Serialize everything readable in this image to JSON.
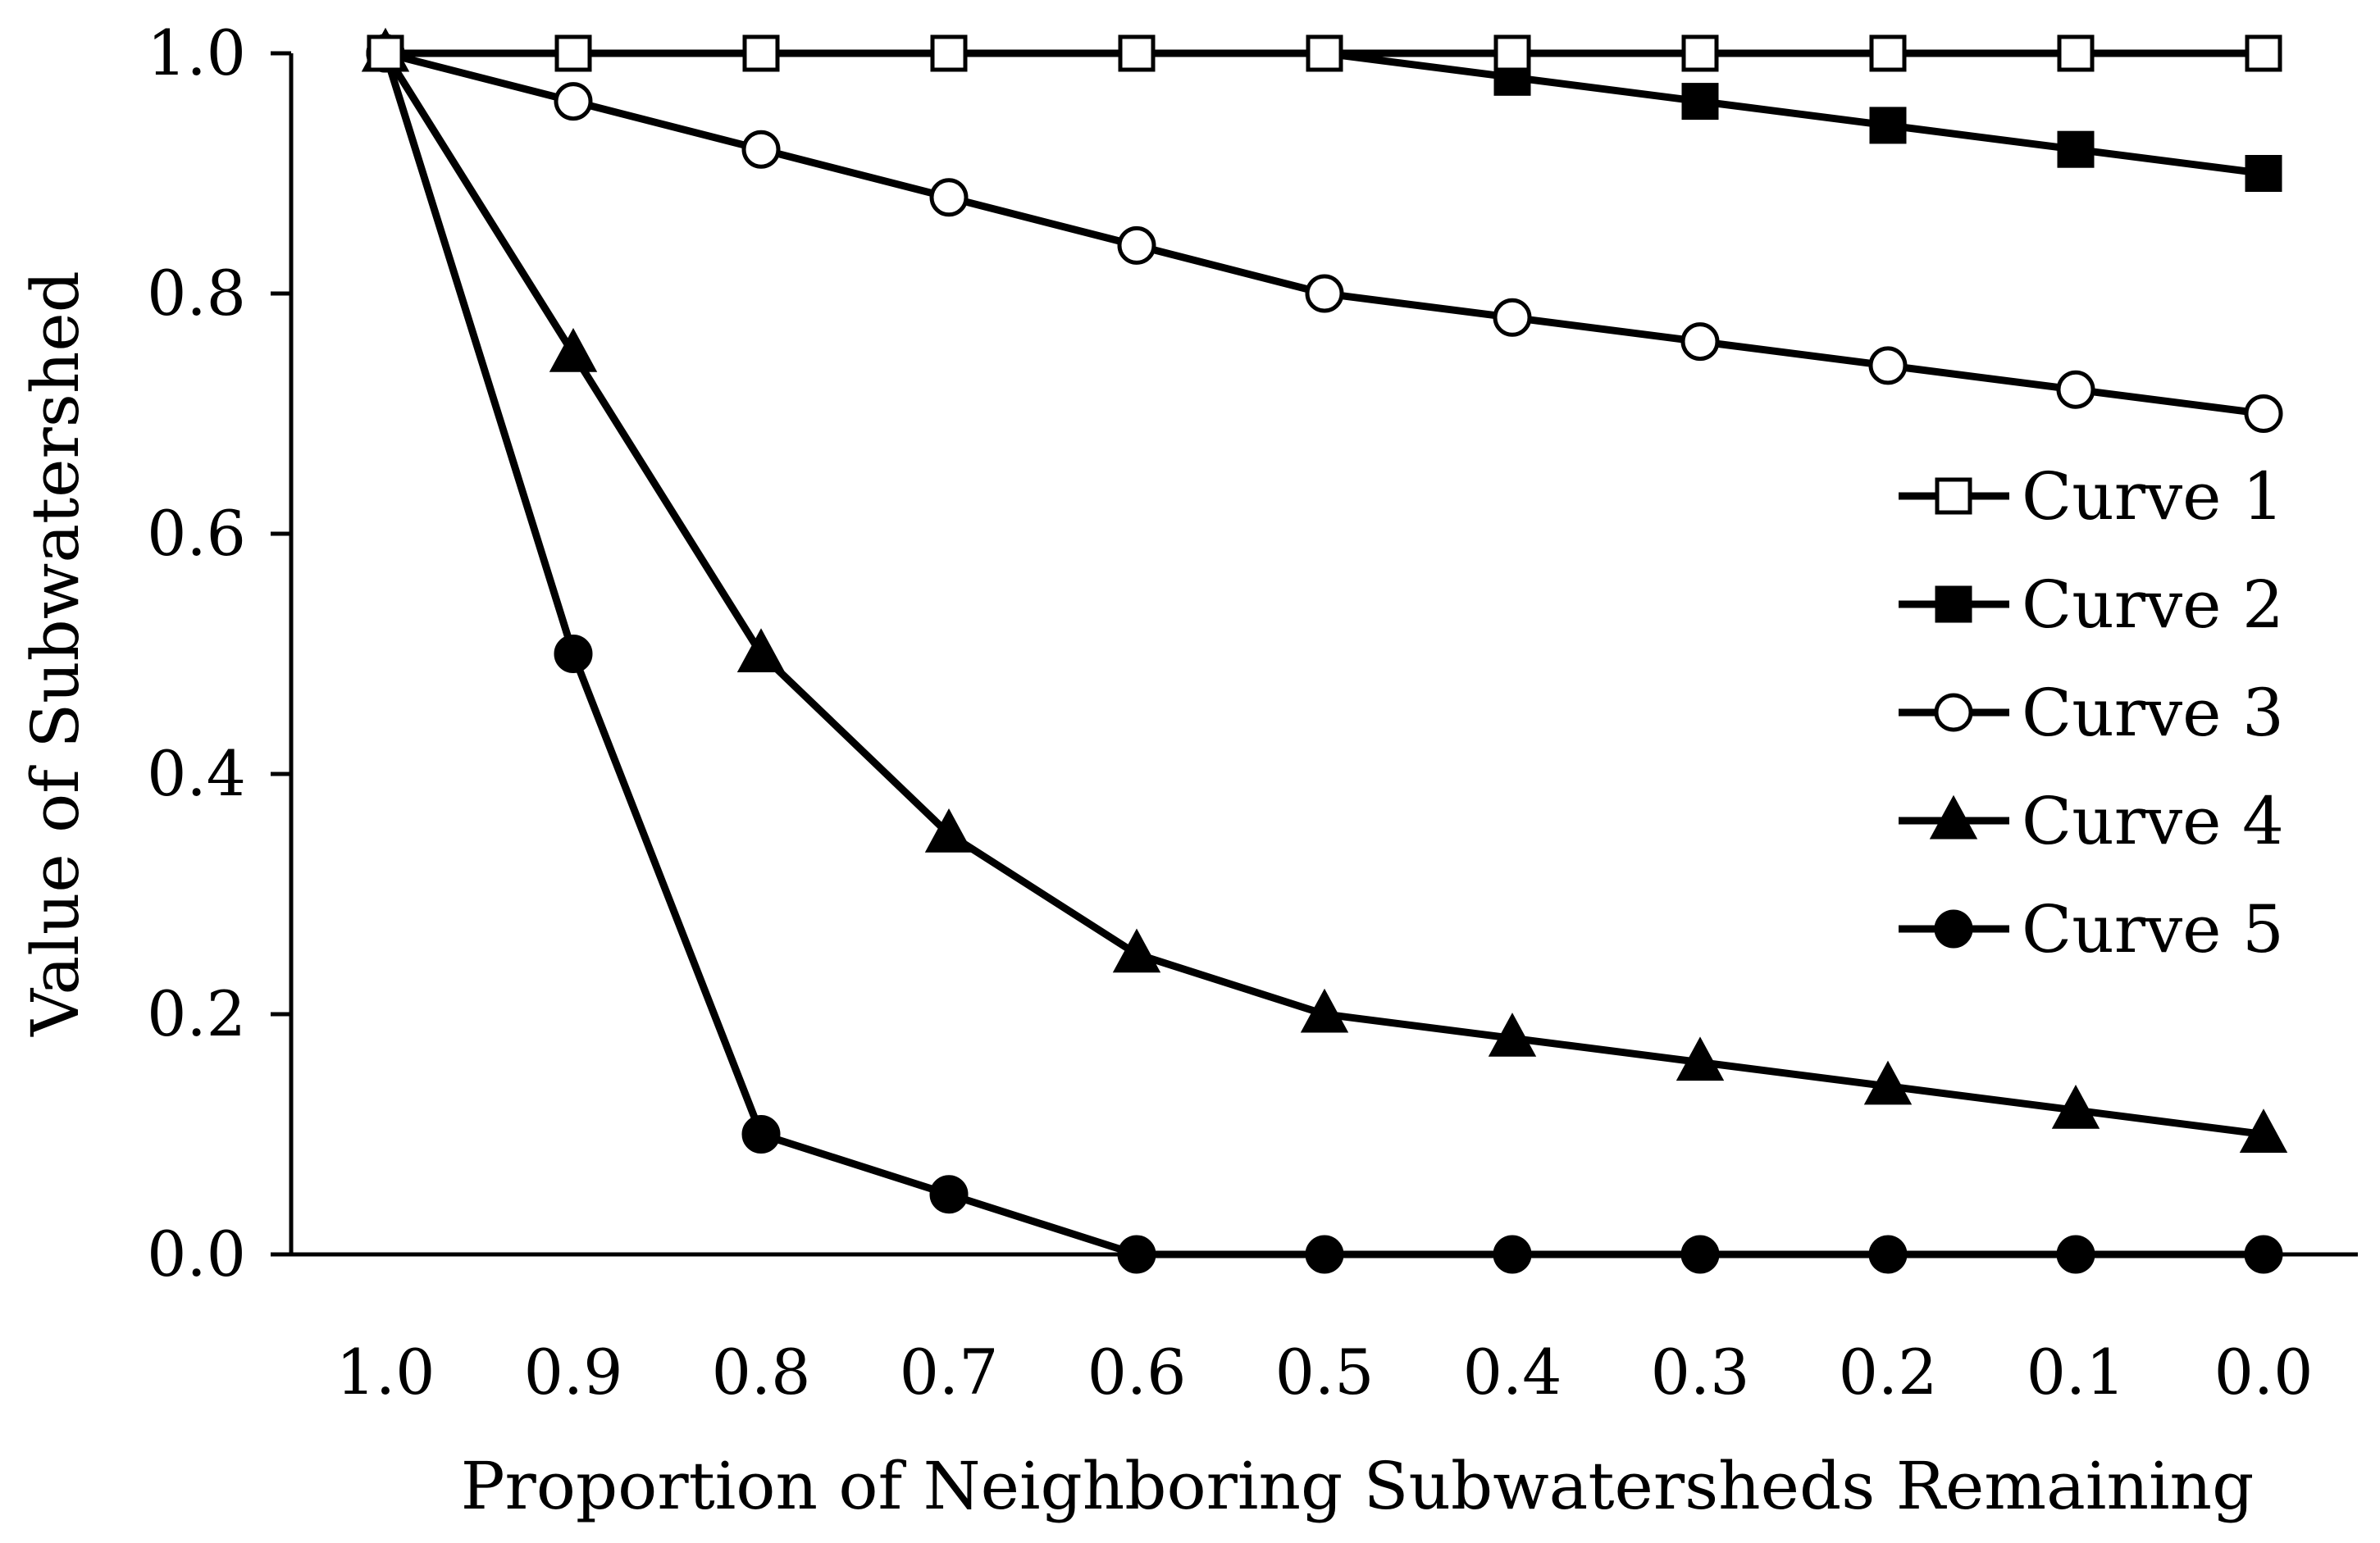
{
  "chart_data": {
    "type": "line",
    "title": "",
    "xlabel": "Proportion of Neighboring Subwatersheds Remaining",
    "ylabel": "Value of Subwatershed",
    "x": [
      1.0,
      0.9,
      0.8,
      0.7,
      0.6,
      0.5,
      0.4,
      0.3,
      0.2,
      0.1,
      0.0
    ],
    "x_tick_labels": [
      "1.0",
      "0.9",
      "0.8",
      "0.7",
      "0.6",
      "0.5",
      "0.4",
      "0.3",
      "0.2",
      "0.1",
      "0.0"
    ],
    "y_ticks": [
      0.0,
      0.2,
      0.4,
      0.6,
      0.8,
      1.0
    ],
    "y_tick_labels": [
      "0.0",
      "0.2",
      "0.4",
      "0.6",
      "0.8",
      "1.0"
    ],
    "xlim": [
      1.0,
      0.0
    ],
    "ylim": [
      0.0,
      1.0
    ],
    "grid": false,
    "legend_position": "right",
    "series": [
      {
        "name": "Curve 1",
        "marker": "square-open",
        "values": [
          1.0,
          1.0,
          1.0,
          1.0,
          1.0,
          1.0,
          1.0,
          1.0,
          1.0,
          1.0,
          1.0
        ]
      },
      {
        "name": "Curve 2",
        "marker": "square-filled",
        "values": [
          1.0,
          1.0,
          1.0,
          1.0,
          1.0,
          1.0,
          0.98,
          0.96,
          0.94,
          0.92,
          0.9
        ]
      },
      {
        "name": "Curve 3",
        "marker": "circle-open",
        "values": [
          1.0,
          0.96,
          0.92,
          0.88,
          0.84,
          0.8,
          0.78,
          0.76,
          0.74,
          0.72,
          0.7
        ]
      },
      {
        "name": "Curve 4",
        "marker": "triangle-filled",
        "values": [
          1.0,
          0.75,
          0.5,
          0.35,
          0.25,
          0.2,
          0.18,
          0.16,
          0.14,
          0.12,
          0.1
        ]
      },
      {
        "name": "Curve 5",
        "marker": "circle-filled",
        "values": [
          1.0,
          0.5,
          0.1,
          0.05,
          0.0,
          0.0,
          0.0,
          0.0,
          0.0,
          0.0,
          0.0
        ]
      }
    ]
  }
}
